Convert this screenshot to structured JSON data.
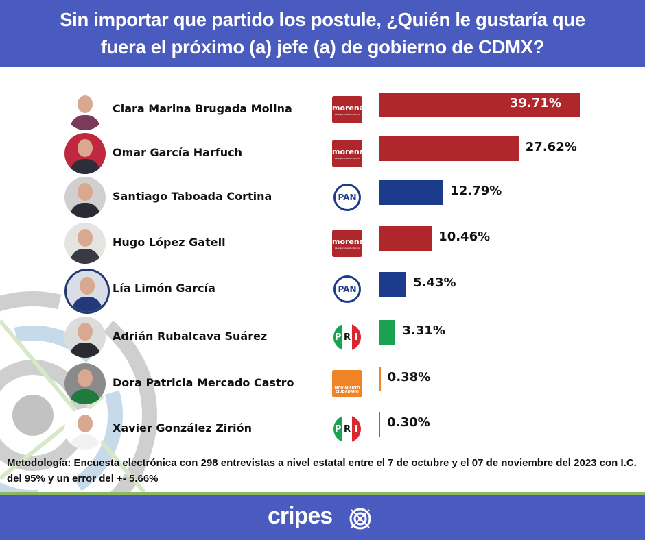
{
  "header": {
    "title_line1": "Sin importar que partido los postule, ¿Quién le gustaría que",
    "title_line2": "fuera el próximo (a) jefe (a) de gobierno de CDMX?"
  },
  "colors": {
    "header_bg": "#4a5bbf",
    "morena": "#b0272b",
    "pan": "#1d3b8c",
    "pri": "#1aa251",
    "mc": "#f08326",
    "accent_line": "#8cb860"
  },
  "chart_data": {
    "type": "bar",
    "orientation": "horizontal",
    "title": "Sin importar que partido los postule, ¿Quién le gustaría que fuera el próximo (a) jefe (a) de gobierno de CDMX?",
    "xlabel": "",
    "ylabel": "",
    "unit": "%",
    "categories": [
      "Clara Marina Brugada Molina",
      "Omar García Harfuch",
      "Santiago Taboada Cortina",
      "Hugo López Gatell",
      "Lía Limón García",
      "Adrián Rubalcava Suárez",
      "Dora Patricia Mercado Castro",
      "Xavier González Zirión"
    ],
    "values": [
      39.71,
      27.62,
      12.79,
      10.46,
      5.43,
      3.31,
      0.38,
      0.3
    ],
    "labels": [
      "39.71%",
      "27.62%",
      "12.79%",
      "10.46%",
      "5.43%",
      "3.31%",
      "0.38%",
      "0.30%"
    ],
    "parties": [
      "morena",
      "morena",
      "PAN",
      "morena",
      "PAN",
      "PRI",
      "MC",
      "PRI"
    ],
    "bar_colors": [
      "#b0272b",
      "#b0272b",
      "#1d3b8c",
      "#b0272b",
      "#1d3b8c",
      "#1aa251",
      "#f08326",
      "#1aa251"
    ],
    "grid": false,
    "legend": "none"
  },
  "party_logos": {
    "morena": {
      "text": "morena",
      "sub": "La esperanza de México"
    },
    "PAN": {
      "text": "PAN"
    },
    "PRI": {
      "text": [
        "P",
        "R",
        "I"
      ]
    },
    "MC": {
      "text": "MOVIMIENTO CIUDADANO"
    }
  },
  "methodology": "Metodología: Encuesta electrónica con 298 entrevistas a nivel estatal entre el  7 de octubre y el 07 de noviembre del 2023 con I.C. del 95% y un error del +- 5.66%",
  "footer": {
    "brand": "cripes"
  }
}
